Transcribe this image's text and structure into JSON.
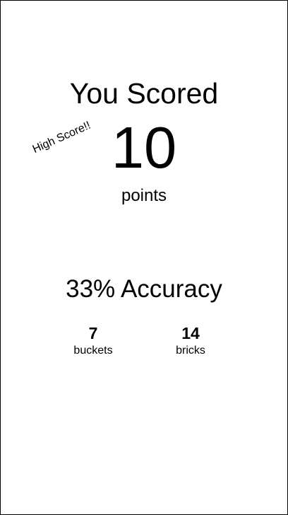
{
  "results": {
    "title": "You Scored",
    "score": "10",
    "unit": "points",
    "badge": "High Score!!",
    "accuracy": "33% Accuracy"
  },
  "stats": [
    {
      "value": "7",
      "label": "buckets"
    },
    {
      "value": "14",
      "label": "bricks"
    }
  ],
  "colors": {
    "background": "#ffffff",
    "text": "#000000",
    "border": "#000000"
  }
}
